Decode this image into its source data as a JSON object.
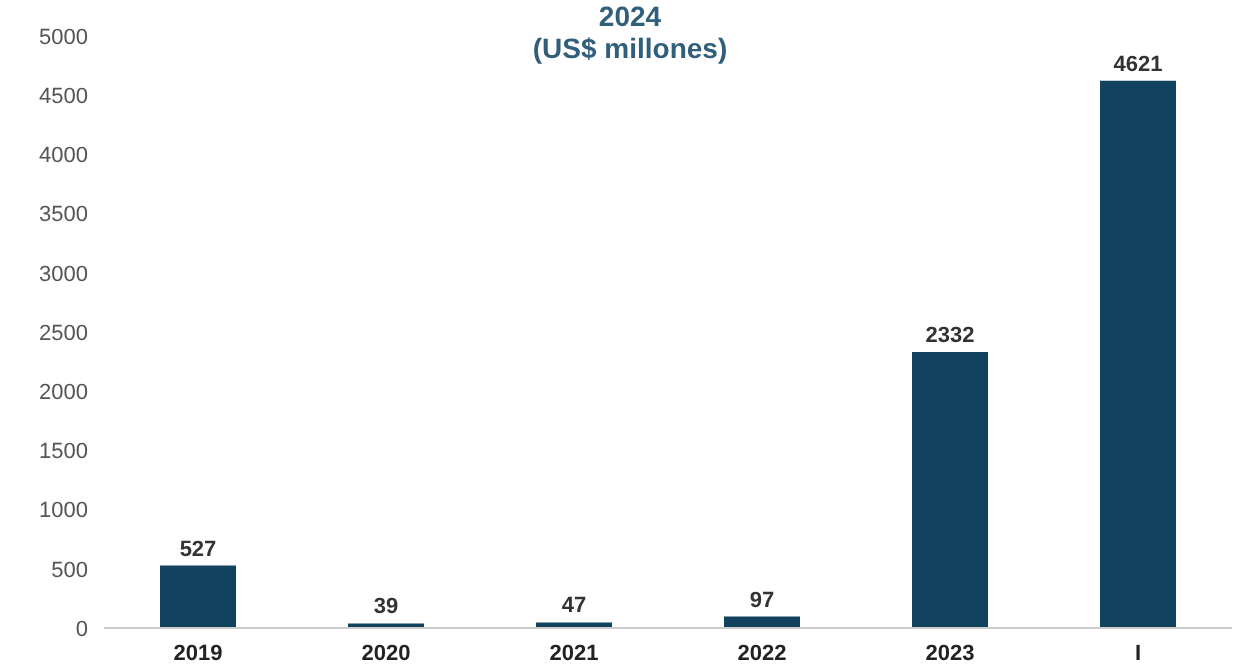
{
  "chart_data": {
    "type": "bar",
    "title": "2024",
    "subtitle": "(US$ millones)",
    "categories": [
      "2019",
      "2020",
      "2021",
      "2022",
      "2023",
      "I"
    ],
    "values": [
      527,
      39,
      47,
      97,
      2332,
      4621
    ],
    "color": "#12435e",
    "ylim": [
      0,
      5000
    ],
    "yticks": [
      0,
      500,
      1000,
      1500,
      2000,
      2500,
      3000,
      3500,
      4000,
      4500,
      5000
    ],
    "grid": false,
    "data_labels": true
  }
}
